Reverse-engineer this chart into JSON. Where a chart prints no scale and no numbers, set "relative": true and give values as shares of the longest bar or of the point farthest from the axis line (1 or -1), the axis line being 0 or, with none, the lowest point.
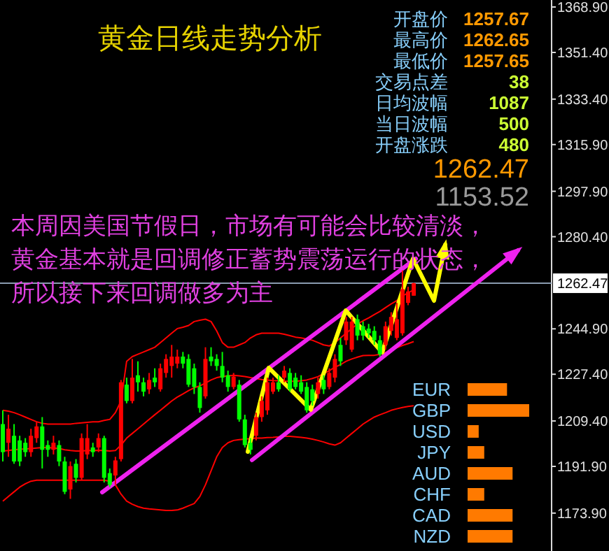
{
  "chart_data": [
    {
      "type": "candlestick",
      "title": "黄金日线走势分析",
      "annotations": [
        "开盘价",
        "1257.67",
        "最高价",
        "1262.65",
        "最低价",
        "1257.65",
        "交易点差",
        "38",
        "日均波幅",
        "1087",
        "当日波幅",
        "500",
        "开盘涨跌",
        "480",
        "1262.47",
        "1153.52",
        "本周因美国节假日，市场有可能会比较清淡，",
        "黄金基本就是回调修正蓄势震荡运行的状态，",
        "所以接下来回调做多为主"
      ],
      "categories": [
        null,
        null,
        null,
        null,
        null,
        null,
        null,
        null,
        null,
        null,
        null,
        null,
        null,
        null,
        null,
        null,
        null,
        null,
        null,
        null,
        null,
        null,
        null,
        null,
        null,
        null,
        null,
        null,
        null,
        null,
        null,
        null,
        null,
        null,
        null,
        null,
        null,
        null,
        null,
        null,
        null,
        null,
        null,
        null,
        null,
        null,
        null,
        null,
        null,
        null,
        null,
        null,
        null,
        null,
        null,
        null,
        null,
        null,
        null,
        null,
        null,
        null,
        null,
        null,
        null,
        null,
        null,
        null,
        null,
        null,
        null,
        null,
        null,
        null,
        null,
        null,
        null,
        null,
        null,
        null,
        null,
        null,
        null,
        null,
        null,
        null,
        null,
        null,
        null,
        null,
        null,
        null,
        null,
        null,
        null,
        null,
        null,
        null
      ],
      "ohlc": [
        [
          1208.2,
          1213.5,
          1193.8,
          1197.4
        ],
        [
          1201.0,
          1211.8,
          1195.6,
          1206.4
        ],
        [
          1203.7,
          1208.2,
          1192.9,
          1193.8
        ],
        [
          1201.9,
          1203.7,
          1192.0,
          1193.8
        ],
        [
          1201.0,
          1202.8,
          1195.6,
          1197.4
        ],
        [
          1197.4,
          1206.4,
          1195.6,
          1203.7
        ],
        [
          1202.8,
          1209.1,
          1201.0,
          1207.3
        ],
        [
          1207.3,
          1210.9,
          1191.1,
          1198.3
        ],
        [
          1200.1,
          1201.9,
          1195.6,
          1198.3
        ],
        [
          1198.3,
          1203.7,
          1196.5,
          1201.0
        ],
        [
          1200.1,
          1201.9,
          1192.0,
          1193.8
        ],
        [
          1193.8,
          1195.6,
          1181.2,
          1182.1
        ],
        [
          1183.0,
          1193.8,
          1179.4,
          1192.0
        ],
        [
          1192.9,
          1194.7,
          1185.7,
          1187.5
        ],
        [
          1187.5,
          1204.6,
          1186.6,
          1202.8
        ],
        [
          1196.5,
          1208.2,
          1194.7,
          1202.8
        ],
        [
          1199.2,
          1201.0,
          1195.6,
          1197.4
        ],
        [
          1199.2,
          1204.6,
          1197.4,
          1202.8
        ],
        [
          1202.8,
          1203.7,
          1185.7,
          1187.5
        ],
        [
          1189.3,
          1191.1,
          1183.9,
          1184.8
        ],
        [
          1188.4,
          1195.6,
          1184.8,
          1194.2
        ],
        [
          1194.7,
          1225.2,
          1193.8,
          1224.3
        ],
        [
          1223.4,
          1226.1,
          1216.2,
          1217.1
        ],
        [
          1217.1,
          1233.3,
          1216.2,
          1226.1
        ],
        [
          1227.0,
          1232.4,
          1220.7,
          1224.3
        ],
        [
          1224.3,
          1226.1,
          1218.9,
          1220.7
        ],
        [
          1221.6,
          1227.9,
          1219.8,
          1225.2
        ],
        [
          1226.1,
          1229.7,
          1222.5,
          1224.3
        ],
        [
          1221.6,
          1231.5,
          1220.7,
          1229.7
        ],
        [
          1227.9,
          1235.1,
          1226.1,
          1233.3
        ],
        [
          1230.6,
          1238.7,
          1226.1,
          1234.2
        ],
        [
          1231.5,
          1236.9,
          1229.7,
          1234.2
        ],
        [
          1234.2,
          1236.0,
          1229.7,
          1231.5
        ],
        [
          1233.3,
          1235.1,
          1222.5,
          1223.4
        ],
        [
          1229.7,
          1231.5,
          1219.8,
          1222.5
        ],
        [
          1222.5,
          1224.3,
          1212.6,
          1214.4
        ],
        [
          1218.9,
          1237.8,
          1218.0,
          1233.3
        ],
        [
          1234.2,
          1237.8,
          1230.6,
          1232.4
        ],
        [
          1233.3,
          1235.1,
          1228.8,
          1230.6
        ],
        [
          1230.6,
          1236.0,
          1224.3,
          1226.1
        ],
        [
          1227.0,
          1228.8,
          1220.7,
          1222.5
        ],
        [
          1222.5,
          1227.9,
          1221.6,
          1226.5
        ],
        [
          1223.4,
          1225.2,
          1209.1,
          1210.0
        ],
        [
          1210.0,
          1211.8,
          1199.2,
          1200.1
        ],
        [
          1201.0,
          1202.8,
          1196.5,
          1198.3
        ],
        [
          1203.7,
          1212.6,
          1201.9,
          1210.9
        ],
        [
          1210.9,
          1218.9,
          1209.1,
          1217.1
        ],
        [
          1213.5,
          1226.1,
          1211.8,
          1224.3
        ],
        [
          1220.7,
          1226.1,
          1219.8,
          1224.3
        ],
        [
          1224.3,
          1227.0,
          1220.7,
          1221.6
        ],
        [
          1226.1,
          1230.6,
          1224.3,
          1228.8
        ],
        [
          1227.9,
          1229.7,
          1220.7,
          1221.6
        ],
        [
          1226.1,
          1227.9,
          1221.6,
          1222.5
        ],
        [
          1224.3,
          1227.0,
          1219.8,
          1220.7
        ],
        [
          1222.5,
          1224.3,
          1212.6,
          1213.5
        ],
        [
          1221.6,
          1223.4,
          1215.3,
          1217.1
        ],
        [
          1219.8,
          1226.1,
          1218.0,
          1224.3
        ],
        [
          1225.2,
          1227.0,
          1219.8,
          1221.6
        ],
        [
          1222.5,
          1229.7,
          1221.6,
          1227.9
        ],
        [
          1226.1,
          1235.1,
          1224.3,
          1233.3
        ],
        [
          1238.7,
          1241.4,
          1230.6,
          1232.4
        ],
        [
          1240.5,
          1249.5,
          1238.7,
          1247.7
        ],
        [
          1236.9,
          1249.5,
          1236.0,
          1247.7
        ],
        [
          1248.6,
          1250.4,
          1240.5,
          1242.3
        ],
        [
          1245.9,
          1247.7,
          1240.5,
          1242.3
        ],
        [
          1245.0,
          1246.8,
          1241.4,
          1243.2
        ],
        [
          1244.1,
          1245.9,
          1238.7,
          1240.5
        ],
        [
          1240.5,
          1242.3,
          1234.2,
          1235.1
        ],
        [
          1238.7,
          1247.7,
          1236.9,
          1245.9
        ],
        [
          1244.1,
          1251.3,
          1242.3,
          1249.5
        ],
        [
          1241.4,
          1254.9,
          1240.5,
          1248.6
        ],
        [
          1243.2,
          1267.4,
          1242.3,
          1260.2
        ],
        [
          1254.9,
          1261.1,
          1254.0,
          1259.3
        ],
        [
          1257.67,
          1262.65,
          1257.65,
          1262.47
        ],
        null,
        null,
        null,
        null,
        null,
        null,
        null,
        null,
        null,
        null,
        null,
        null,
        null,
        null,
        null,
        null,
        null,
        null,
        null,
        null,
        null,
        null,
        null,
        null
      ],
      "ylim": [
        1159.3,
        1371.6
      ],
      "yticks": [
        {
          "value": 1368.9,
          "label": "1368.90"
        },
        {
          "value": 1351.4,
          "label": "1351.40"
        },
        {
          "value": 1333.4,
          "label": "1333.40"
        },
        {
          "value": 1315.9,
          "label": "1315.90"
        },
        {
          "value": 1297.9,
          "label": "1297.90"
        },
        {
          "value": 1280.4,
          "label": "1280.40"
        },
        {
          "value": 1244.9,
          "label": "1244.90"
        },
        {
          "value": 1227.4,
          "label": "1227.40"
        },
        {
          "value": 1209.4,
          "label": "1209.40"
        },
        {
          "value": 1191.9,
          "label": "1191.90"
        },
        {
          "value": 1173.9,
          "label": "1173.90"
        }
      ],
      "tick_labels": "y",
      "ref_lines": [
        {
          "axis": "y",
          "value": 1262.47,
          "label": "1262.47",
          "color": "#8a9bb0"
        }
      ],
      "series": [
        {
          "type": "line",
          "color": "#ff0000",
          "values": [
            1213.5,
            1213.2,
            1212.6,
            1211.8,
            1210.9,
            1210.0,
            1209.1,
            1208.5,
            1208.2,
            1208.2,
            1208.2,
            1208.2,
            1208.2,
            1208.5,
            1208.7,
            1208.9,
            1209.1,
            1209.1,
            1209.6,
            1210.0,
            1212.6,
            1217.1,
            1232.4,
            1234.2,
            1235.1,
            1236.0,
            1236.9,
            1237.8,
            1239.6,
            1241.4,
            1243.2,
            1245.0,
            1245.5,
            1246.2,
            1247.7,
            1248.2,
            1248.6,
            1247.7,
            1244.1,
            1239.6,
            1237.8,
            1237.8,
            1238.7,
            1239.6,
            1241.4,
            1242.6,
            1243.2,
            1243.2,
            1243.2,
            1243.2,
            1242.8,
            1242.3,
            1241.7,
            1241.4,
            1241.0,
            1240.5,
            1239.6,
            1238.7,
            1238.3,
            1239.6,
            1241.4,
            1243.2,
            1245.0,
            1246.8,
            1248.0,
            1249.1,
            1250.4,
            1251.6,
            1253.1,
            1254.5,
            1255.8,
            1257.5,
            1258.8,
            1259.9,
            null,
            null,
            null,
            null,
            null,
            null,
            null,
            null,
            null,
            null,
            null,
            null,
            null,
            null,
            null,
            null,
            null,
            null,
            null,
            null,
            null,
            null,
            null,
            null
          ]
        },
        {
          "type": "line",
          "color": "#ff0000",
          "values": [
            1197.8,
            1198.0,
            1198.3,
            1198.5,
            1198.6,
            1198.8,
            1199.0,
            1199.2,
            1199.2,
            1199.0,
            1198.8,
            1198.3,
            1198.0,
            1197.8,
            1197.8,
            1198.0,
            1198.0,
            1198.1,
            1198.0,
            1197.8,
            1198.0,
            1200.1,
            1202.8,
            1204.6,
            1206.4,
            1208.2,
            1210.0,
            1211.8,
            1213.5,
            1215.3,
            1217.1,
            1218.6,
            1219.8,
            1221.1,
            1222.2,
            1222.9,
            1224.0,
            1225.2,
            1226.1,
            1226.5,
            1226.8,
            1227.0,
            1226.8,
            1226.5,
            1226.1,
            1225.8,
            1225.4,
            1225.2,
            1225.0,
            1224.9,
            1224.7,
            1224.7,
            1224.7,
            1224.9,
            1225.2,
            1225.8,
            1226.5,
            1227.6,
            1228.8,
            1230.1,
            1231.1,
            1232.4,
            1233.3,
            1234.0,
            1234.6,
            1234.7,
            1234.7,
            1235.1,
            1235.8,
            1236.7,
            1237.6,
            1238.5,
            1239.2,
            1240.0,
            null,
            null,
            null,
            null,
            null,
            null,
            null,
            null,
            null,
            null,
            null,
            null,
            null,
            null,
            null,
            null,
            null,
            null,
            null,
            null,
            null,
            null,
            null,
            null
          ]
        },
        {
          "type": "line",
          "color": "#ff0000",
          "values": [
            1178.5,
            1180.3,
            1182.1,
            1183.9,
            1185.2,
            1186.2,
            1186.6,
            1186.6,
            1186.6,
            1186.6,
            1186.6,
            1186.6,
            1186.6,
            1186.6,
            1186.6,
            1186.6,
            1186.6,
            1186.6,
            1186.6,
            1186.2,
            1184.8,
            1181.2,
            1178.5,
            1177.3,
            1176.4,
            1175.8,
            1175.5,
            1175.3,
            1175.1,
            1174.9,
            1174.9,
            1175.1,
            1175.8,
            1176.7,
            1177.6,
            1180.3,
            1184.8,
            1190.2,
            1195.6,
            1199.2,
            1201.0,
            1201.9,
            1202.2,
            1202.4,
            1202.6,
            1202.8,
            1202.8,
            1203.0,
            1203.1,
            1203.3,
            1203.5,
            1203.5,
            1203.3,
            1203.1,
            1202.8,
            1202.4,
            1201.9,
            1201.3,
            1200.6,
            1200.1,
            1201.0,
            1202.8,
            1204.6,
            1206.4,
            1208.2,
            1209.6,
            1210.9,
            1211.8,
            1212.6,
            1213.5,
            1214.1,
            1214.6,
            1215.0,
            1215.3,
            null,
            null,
            null,
            null,
            null,
            null,
            null,
            null,
            null,
            null,
            null,
            null,
            null,
            null,
            null,
            null,
            null,
            null,
            null,
            null,
            null,
            null,
            null,
            null
          ]
        }
      ]
    },
    {
      "type": "bar",
      "orientation": "horizontal",
      "relative": true,
      "categories": [
        "EUR",
        "GBP",
        "USD",
        "JPY",
        "AUD",
        "CHF",
        "CAD",
        "NZD"
      ],
      "values": [
        0.64,
        1,
        0.18,
        0.27,
        0.73,
        0.27,
        0.73,
        0.73
      ],
      "color": "#ff7a00"
    }
  ]
}
